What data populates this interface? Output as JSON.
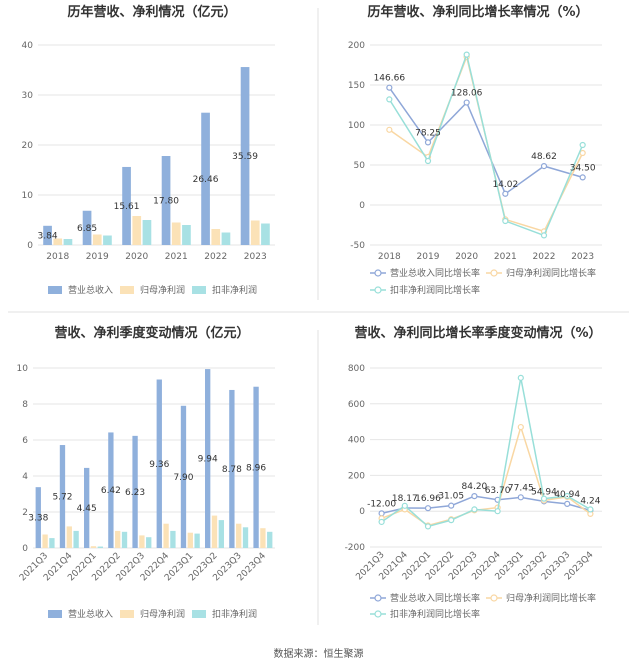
{
  "source_label": "数据来源：恒生聚源",
  "colors": {
    "revenue": "#8fb0dc",
    "net_profit": "#fbe2b7",
    "deducted_profit": "#a8e1e4",
    "revenue_line": "#8fa7d8",
    "net_profit_line": "#f9d7a3",
    "deducted_line": "#98dfd9",
    "grid": "#e6e6e6",
    "axis_text": "#666666",
    "divider": "#e0e0e0"
  },
  "chart_data": [
    {
      "type": "bar",
      "title": "历年营收、净利情况（亿元）",
      "categories": [
        "2018",
        "2019",
        "2020",
        "2021",
        "2022",
        "2023"
      ],
      "ylim": [
        0,
        40
      ],
      "yticks": [
        0,
        10,
        20,
        30,
        40
      ],
      "series": [
        {
          "name": "营业总收入",
          "values": [
            3.84,
            6.85,
            15.61,
            17.8,
            26.46,
            35.59
          ],
          "labels": [
            "3.84",
            "6.85",
            "15.61",
            "17.80",
            "26.46",
            "35.59"
          ]
        },
        {
          "name": "归母净利润",
          "values": [
            1.3,
            2.1,
            5.8,
            4.5,
            3.2,
            4.9
          ]
        },
        {
          "name": "扣非净利润",
          "values": [
            1.2,
            1.9,
            5.0,
            4.0,
            2.5,
            4.3
          ]
        }
      ]
    },
    {
      "type": "line",
      "title": "历年营收、净利同比增长率情况（%）",
      "categories": [
        "2018",
        "2019",
        "2020",
        "2021",
        "2022",
        "2023"
      ],
      "ylim": [
        -50,
        200
      ],
      "yticks": [
        -50,
        0,
        50,
        100,
        150,
        200
      ],
      "series": [
        {
          "name": "营业总收入同比增长率",
          "values": [
            146.66,
            78.25,
            128.06,
            14.02,
            48.62,
            34.5
          ],
          "labels": [
            "146.66",
            "78.25",
            "128.06",
            "14.02",
            "48.62",
            "34.50"
          ]
        },
        {
          "name": "归母净利润同比增长率",
          "values": [
            94,
            60,
            185,
            -18,
            -33,
            65
          ]
        },
        {
          "name": "扣非净利润同比增长率",
          "values": [
            132,
            55,
            188,
            -20,
            -38,
            75
          ]
        }
      ]
    },
    {
      "type": "bar",
      "title": "营收、净利季度变动情况（亿元）",
      "categories": [
        "2021Q3",
        "2021Q4",
        "2022Q1",
        "2022Q2",
        "2022Q3",
        "2022Q4",
        "2023Q1",
        "2023Q2",
        "2023Q3",
        "2023Q4"
      ],
      "ylim": [
        0,
        10
      ],
      "yticks": [
        0,
        2,
        4,
        6,
        8,
        10
      ],
      "series": [
        {
          "name": "营业总收入",
          "values": [
            3.38,
            5.72,
            4.45,
            6.42,
            6.23,
            9.36,
            7.9,
            9.94,
            8.78,
            8.96
          ],
          "labels": [
            "3.38",
            "5.72",
            "4.45",
            "6.42",
            "6.23",
            "9.36",
            "7.90",
            "9.94",
            "8.78",
            "8.96"
          ]
        },
        {
          "name": "归母净利润",
          "values": [
            0.75,
            1.2,
            0.1,
            0.95,
            0.7,
            1.35,
            0.85,
            1.8,
            1.35,
            1.1
          ]
        },
        {
          "name": "扣非净利润",
          "values": [
            0.55,
            0.95,
            0.08,
            0.9,
            0.6,
            0.95,
            0.8,
            1.55,
            1.15,
            0.9
          ]
        }
      ]
    },
    {
      "type": "line",
      "title": "营收、净利同比增长率季度变动情况（%）",
      "categories": [
        "2021Q3",
        "2021Q4",
        "2022Q1",
        "2022Q2",
        "2022Q3",
        "2022Q4",
        "2023Q1",
        "2023Q2",
        "2023Q3",
        "2023Q4"
      ],
      "ylim": [
        -200,
        800
      ],
      "yticks": [
        -200,
        0,
        200,
        400,
        600,
        800
      ],
      "series": [
        {
          "name": "营业总收入同比增长率",
          "values": [
            -12.0,
            18.17,
            16.96,
            31.05,
            84.2,
            63.7,
            77.45,
            54.94,
            40.94,
            4.24
          ],
          "labels": [
            "-12.00",
            "18.17",
            "16.96",
            "31.05",
            "84.20",
            "63.70",
            "77.45",
            "54.94",
            "40.94",
            "4.24"
          ]
        },
        {
          "name": "归母净利润同比增长率",
          "values": [
            -40,
            10,
            -80,
            -45,
            5,
            20,
            470,
            60,
            80,
            -15
          ]
        },
        {
          "name": "扣非净利润同比增长率",
          "values": [
            -60,
            30,
            -85,
            -50,
            10,
            0,
            745,
            70,
            85,
            10
          ]
        }
      ]
    }
  ]
}
